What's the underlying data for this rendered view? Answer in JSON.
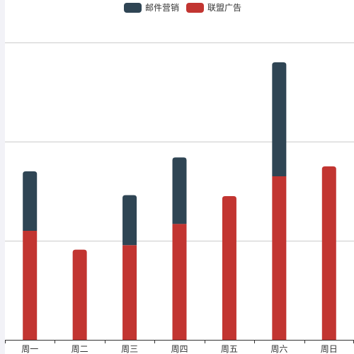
{
  "chart_data": {
    "type": "bar",
    "stacked": true,
    "categories": [
      "周一",
      "周二",
      "周三",
      "周四",
      "周五",
      "周六",
      "周日"
    ],
    "series": [
      {
        "name": "联盟广告",
        "values": [
          220,
          182,
          191,
          234,
          290,
          330,
          350
        ],
        "color": "#c23531"
      },
      {
        "name": "邮件营销",
        "values": [
          120,
          0,
          101,
          134,
          0,
          230,
          0
        ],
        "color": "#2f4554"
      }
    ],
    "ylim": [
      0,
      600
    ],
    "y_gridlines": [
      200,
      400,
      600
    ],
    "y_tick_labels_visible": false,
    "legend_position": "top-center",
    "grid": true
  }
}
